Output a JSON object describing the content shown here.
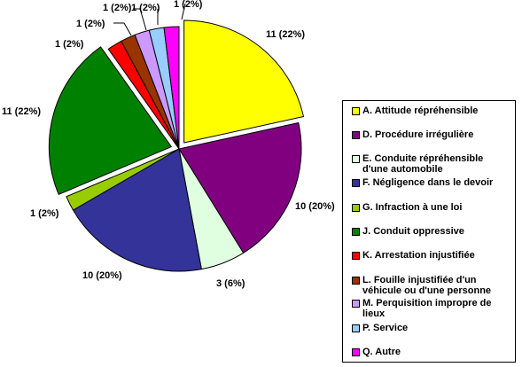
{
  "chart_data": {
    "type": "pie",
    "title": "",
    "slices": [
      {
        "label": "A. Attitude répréhensible",
        "value": 11,
        "percent": 22,
        "data_label": "11 (22%)",
        "color": "#FFFF00",
        "exploded": true
      },
      {
        "label": "D. Procédure irrégulière",
        "value": 10,
        "percent": 20,
        "data_label": "10 (20%)",
        "color": "#800080",
        "exploded": false
      },
      {
        "label": "E. Conduite répréhensible d'une automobile",
        "value": 3,
        "percent": 6,
        "data_label": "3 (6%)",
        "color": "#E0FFE0",
        "exploded": false
      },
      {
        "label": "F. Négligence dans le devoir",
        "value": 10,
        "percent": 20,
        "data_label": "10 (20%)",
        "color": "#333399",
        "exploded": false
      },
      {
        "label": "G. Infraction à une loi",
        "value": 1,
        "percent": 2,
        "data_label": "1 (2%)",
        "color": "#99CC00",
        "exploded": false
      },
      {
        "label": "J. Conduit oppressive",
        "value": 11,
        "percent": 22,
        "data_label": "11 (22%)",
        "color": "#008000",
        "exploded": true
      },
      {
        "label": "K. Arrestation injustifiée",
        "value": 1,
        "percent": 2,
        "data_label": "1 (2%)",
        "color": "#FF0000",
        "exploded": false
      },
      {
        "label": "L. Fouille injustifiée d'un véhicule ou d'une personne",
        "value": 1,
        "percent": 2,
        "data_label": "1 (2%)",
        "color": "#993300",
        "exploded": false
      },
      {
        "label": "M. Perquisition impropre de lieux",
        "value": 1,
        "percent": 2,
        "data_label": "1 (2%)",
        "color": "#CC99FF",
        "exploded": false
      },
      {
        "label": "P. Service",
        "value": 1,
        "percent": 2,
        "data_label": "1 (2%)",
        "color": "#99CCFF",
        "exploded": false
      },
      {
        "label": "Q. Autre",
        "value": 1,
        "percent": 2,
        "data_label": "1 (2%)",
        "color": "#FF00FF",
        "exploded": false
      }
    ],
    "legend_placement": "right"
  },
  "legend_lines": [
    [
      "A. Attitude répréhensible"
    ],
    [
      "D. Procédure irrégulière"
    ],
    [
      "E. Conduite répréhensible",
      "d'une automobile"
    ],
    [
      "F. Négligence dans le devoir"
    ],
    [
      "G. Infraction à une loi"
    ],
    [
      "J. Conduit oppressive"
    ],
    [
      "K. Arrestation injustifiée"
    ],
    [
      "L. Fouille injustifiée d'un",
      "véhicule ou d'une personne"
    ],
    [
      "M. Perquisition impropre de",
      "lieux"
    ],
    [
      "P. Service"
    ],
    [
      "Q. Autre"
    ]
  ]
}
